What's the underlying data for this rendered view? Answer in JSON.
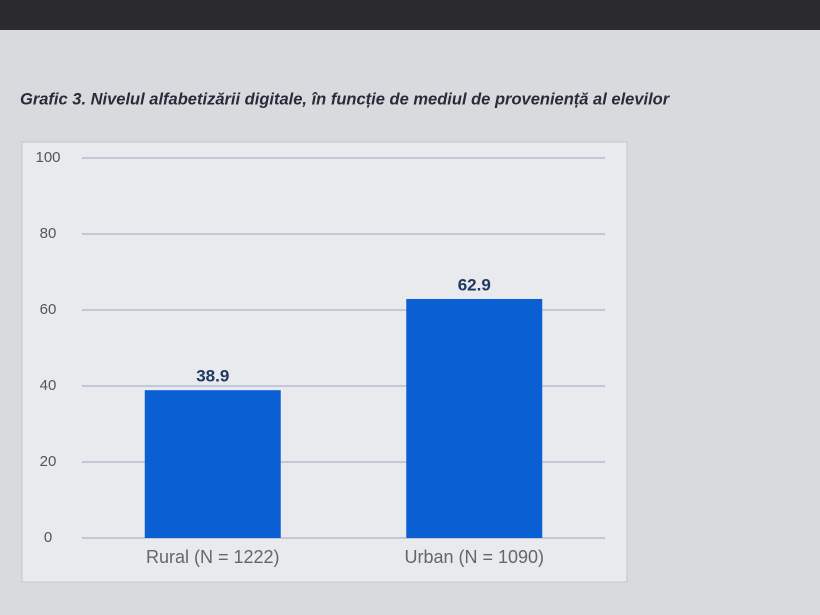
{
  "chart_data": {
    "type": "bar",
    "title": "Grafic 3. Nivelul alfabetizării digitale, în funcție de mediul de proveniență al elevilor",
    "categories": [
      "Rural (N = 1222)",
      "Urban (N = 1090)"
    ],
    "values": [
      38.9,
      62.9
    ],
    "color": "#0a5fd2",
    "ylim": [
      0,
      100
    ],
    "yticks": [
      0,
      20,
      40,
      60,
      80,
      100
    ],
    "grid": true
  }
}
